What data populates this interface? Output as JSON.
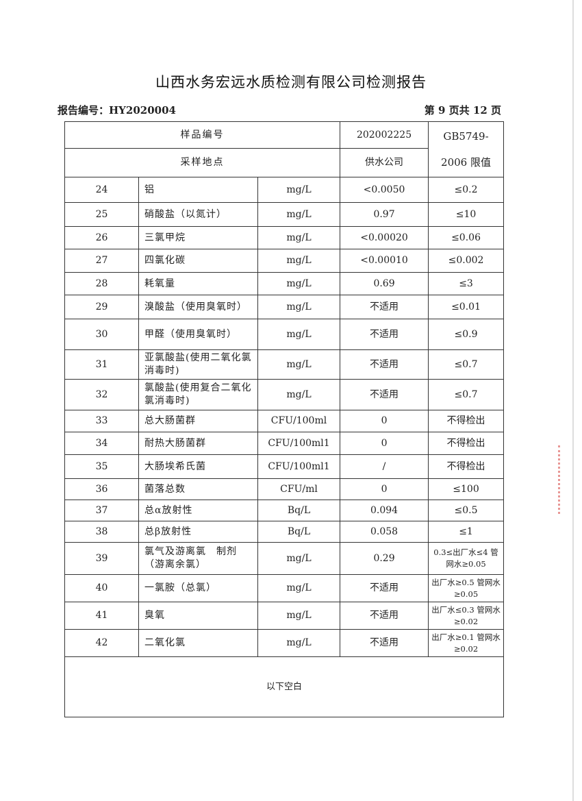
{
  "title": "山西水务宏远水质检测有限公司检测报告",
  "report_no": "报告编号：HY2020004",
  "page_no": "第 9 页共 12 页",
  "header": {
    "sample_no_label": "样品编号",
    "sample_no": "202002225",
    "location_label": "采样地点",
    "location": "供水公司",
    "limit_label": "GB5749-2006 限值"
  },
  "rows": [
    {
      "no": "24",
      "name": "铝",
      "unit": "mg/L",
      "result": "<0.0050",
      "limit": "≤0.2"
    },
    {
      "no": "25",
      "name": "硝酸盐（以氮计）",
      "unit": "mg/L",
      "result": "0.97",
      "limit": "≤10"
    },
    {
      "no": "26",
      "name": "三氯甲烷",
      "unit": "mg/L",
      "result": "<0.00020",
      "limit": "≤0.06"
    },
    {
      "no": "27",
      "name": "四氯化碳",
      "unit": "mg/L",
      "result": "<0.00010",
      "limit": "≤0.002"
    },
    {
      "no": "28",
      "name": "耗氧量",
      "unit": "mg/L",
      "result": "0.69",
      "limit": "≤3"
    },
    {
      "no": "29",
      "name": "溴酸盐（使用臭氧时）",
      "unit": "mg/L",
      "result": "不适用",
      "limit": "≤0.01"
    },
    {
      "no": "30",
      "name": "甲醛（使用臭氧时）",
      "unit": "mg/L",
      "result": "不适用",
      "limit": "≤0.9"
    },
    {
      "no": "31",
      "name": "亚氯酸盐(使用二氧化氯消毒时)",
      "unit": "mg/L",
      "result": "不适用",
      "limit": "≤0.7"
    },
    {
      "no": "32",
      "name": "氯酸盐(使用复合二氧化氯消毒时)",
      "unit": "mg/L",
      "result": "不适用",
      "limit": "≤0.7"
    },
    {
      "no": "33",
      "name": "总大肠菌群",
      "unit": "CFU/100ml",
      "result": "0",
      "limit": "不得检出"
    },
    {
      "no": "34",
      "name": "耐热大肠菌群",
      "unit": "CFU/100ml1",
      "result": "0",
      "limit": "不得检出"
    },
    {
      "no": "35",
      "name": "大肠埃希氏菌",
      "unit": "CFU/100ml1",
      "result": "/",
      "limit": "不得检出"
    },
    {
      "no": "36",
      "name": "菌落总数",
      "unit": "CFU/ml",
      "result": "0",
      "limit": "≤100"
    },
    {
      "no": "37",
      "name": "总α放射性",
      "unit": "Bq/L",
      "result": "0.094",
      "limit": "≤0.5"
    },
    {
      "no": "38",
      "name": "总β放射性",
      "unit": "Bq/L",
      "result": "0.058",
      "limit": "≤1"
    },
    {
      "no": "39",
      "name": "氯气及游离氯　制剂（游离余氯）",
      "unit": "mg/L",
      "result": "0.29",
      "limit": "0.3≤出厂水≤4 管网水≥0.05"
    },
    {
      "no": "40",
      "name": "一氯胺（总氯）",
      "unit": "mg/L",
      "result": "不适用",
      "limit": "出厂水≥0.5 管网水≥0.05"
    },
    {
      "no": "41",
      "name": "臭氧",
      "unit": "mg/L",
      "result": "不适用",
      "limit": "出厂水≤0.3 管网水≥0.02"
    },
    {
      "no": "42",
      "name": "二氧化氯",
      "unit": "mg/L",
      "result": "不适用",
      "limit": "出厂水≥0.1 管网水≥0.02"
    }
  ],
  "footer_note": "以下空白",
  "colors": {
    "text": "#222222",
    "border": "#333333",
    "stamp": "#d9534f"
  }
}
